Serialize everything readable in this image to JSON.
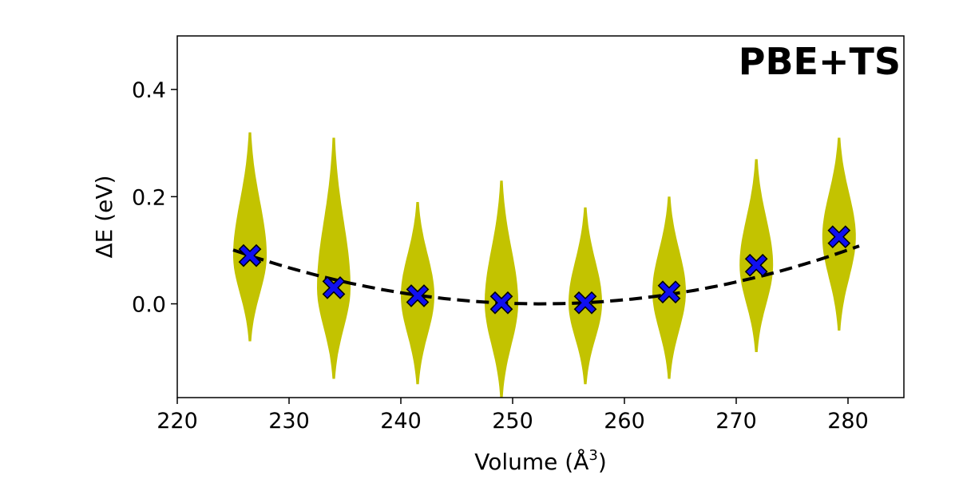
{
  "chart_data": {
    "type": "scatter",
    "title": "PBE+TS",
    "xlabel": "Volume (Å",
    "xlabel_sup": "3",
    "xlabel_end": ")",
    "ylabel": "ΔE (eV)",
    "xlim": [
      220,
      285
    ],
    "ylim": [
      -0.175,
      0.5
    ],
    "x_ticks": [
      220,
      230,
      240,
      250,
      260,
      270,
      280
    ],
    "x_tick_labels": [
      "220",
      "230",
      "240",
      "250",
      "260",
      "270",
      "280"
    ],
    "y_ticks": [
      0.0,
      0.2,
      0.4
    ],
    "y_tick_labels": [
      "0.0",
      "0.2",
      "0.4"
    ],
    "grid": false,
    "colors": {
      "distribution": "#c3c300",
      "mean_marker": "#1010f0",
      "fit": "#000000"
    },
    "distributions": [
      {
        "x": 226.5,
        "mean": 0.09,
        "min": -0.07,
        "max": 0.32
      },
      {
        "x": 234.0,
        "mean": 0.03,
        "min": -0.14,
        "max": 0.31
      },
      {
        "x": 241.5,
        "mean": 0.015,
        "min": -0.15,
        "max": 0.19
      },
      {
        "x": 249.0,
        "mean": 0.002,
        "min": -0.175,
        "max": 0.23
      },
      {
        "x": 256.5,
        "mean": 0.002,
        "min": -0.15,
        "max": 0.18
      },
      {
        "x": 264.0,
        "mean": 0.022,
        "min": -0.14,
        "max": 0.2
      },
      {
        "x": 271.8,
        "mean": 0.072,
        "min": -0.09,
        "max": 0.27
      },
      {
        "x": 279.2,
        "mean": 0.125,
        "min": -0.05,
        "max": 0.31
      }
    ],
    "fit": {
      "style": "dashed",
      "x_range": [
        225,
        281
      ],
      "x0": 252.5,
      "a": 0.000133
    }
  }
}
